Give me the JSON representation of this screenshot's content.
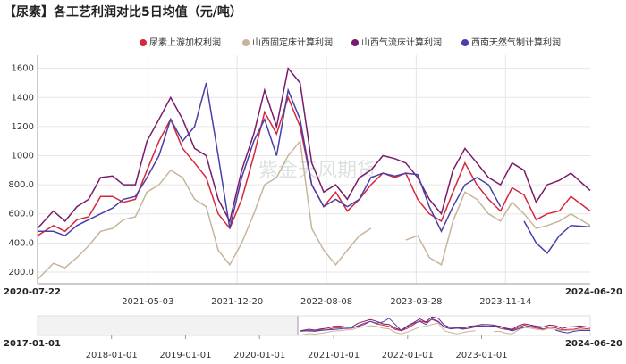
{
  "chart_data": {
    "type": "line",
    "title": "【尿素】各工艺利润对比5日均值（元/吨）",
    "watermark": "紫金天风期货",
    "x": [
      "2020-07-22",
      "2020-09-01",
      "2020-10-01",
      "2020-11-01",
      "2020-12-01",
      "2021-01-01",
      "2021-02-01",
      "2021-03-01",
      "2021-04-01",
      "2021-05-01",
      "2021-06-01",
      "2021-07-01",
      "2021-08-01",
      "2021-09-01",
      "2021-10-01",
      "2021-11-01",
      "2021-12-01",
      "2022-01-01",
      "2022-02-01",
      "2022-03-01",
      "2022-04-01",
      "2022-05-01",
      "2022-06-01",
      "2022-07-01",
      "2022-08-01",
      "2022-09-01",
      "2022-10-01",
      "2022-11-01",
      "2022-12-01",
      "2023-01-01",
      "2023-02-01",
      "2023-03-01",
      "2023-04-01",
      "2023-05-01",
      "2023-06-01",
      "2023-07-01",
      "2023-08-01",
      "2023-09-01",
      "2023-10-01",
      "2023-11-01",
      "2023-12-01",
      "2024-01-01",
      "2024-02-01",
      "2024-03-01",
      "2024-04-01",
      "2024-05-01",
      "2024-06-20"
    ],
    "series": [
      {
        "name": "尿素上游加权利润",
        "color": "#d7263d",
        "values": [
          450,
          520,
          480,
          560,
          580,
          720,
          720,
          680,
          700,
          900,
          1100,
          1250,
          1050,
          950,
          850,
          600,
          500,
          700,
          1000,
          1300,
          1150,
          1400,
          1200,
          800,
          650,
          750,
          620,
          700,
          800,
          880,
          850,
          880,
          700,
          600,
          550,
          750,
          950,
          800,
          700,
          620,
          780,
          730,
          560,
          600,
          620,
          720,
          620
        ]
      },
      {
        "name": "山西固定床计算利润",
        "color": "#c8b49a",
        "values": [
          150,
          260,
          230,
          300,
          380,
          480,
          500,
          560,
          580,
          750,
          800,
          900,
          850,
          700,
          650,
          350,
          250,
          400,
          600,
          800,
          850,
          1000,
          1100,
          500,
          350,
          250,
          350,
          450,
          500,
          null,
          null,
          420,
          450,
          300,
          250,
          550,
          750,
          700,
          600,
          550,
          680,
          600,
          500,
          520,
          550,
          600,
          520
        ]
      },
      {
        "name": "山西气流床计算利润",
        "color": "#7a1a6b",
        "values": [
          500,
          620,
          550,
          650,
          700,
          850,
          860,
          800,
          800,
          1100,
          1250,
          1400,
          1250,
          1050,
          1000,
          700,
          550,
          900,
          1150,
          1450,
          1200,
          1600,
          1500,
          950,
          750,
          800,
          700,
          850,
          900,
          1000,
          980,
          950,
          850,
          700,
          600,
          900,
          1050,
          950,
          850,
          800,
          950,
          900,
          680,
          800,
          830,
          880,
          760
        ]
      },
      {
        "name": "西南天然气制计算利润",
        "color": "#4a3fa8",
        "values": [
          480,
          480,
          450,
          520,
          560,
          600,
          640,
          700,
          720,
          850,
          1000,
          1250,
          1100,
          1200,
          1500,
          1000,
          500,
          850,
          1100,
          1250,
          1000,
          1450,
          1250,
          800,
          650,
          700,
          650,
          700,
          850,
          880,
          860,
          880,
          870,
          650,
          480,
          650,
          800,
          850,
          800,
          650,
          null,
          550,
          400,
          330,
          450,
          520,
          510
        ]
      }
    ],
    "ylim": [
      120,
      1690
    ],
    "yticks": [
      {
        "value": 200,
        "label": "200.0"
      },
      {
        "value": 400,
        "label": "400.0"
      },
      {
        "value": 600,
        "label": "600.0"
      },
      {
        "value": 800,
        "label": "800.0"
      },
      1000,
      1200,
      1400,
      1600
    ],
    "xlim": [
      "2020-07-22",
      "2024-06-20"
    ],
    "xticks": [
      "2021-05-03",
      "2021-12-20",
      "2022-08-08",
      "2023-03-28",
      "2023-11-14"
    ],
    "grid": true,
    "navigator": {
      "xlim": [
        "2017-01-01",
        "2024-06-20"
      ],
      "xticks": [
        "2018-01-01",
        "2019-01-01",
        "2020-01-01",
        "2021-01-01",
        "2022-01-01",
        "2023-01-01"
      ]
    }
  }
}
